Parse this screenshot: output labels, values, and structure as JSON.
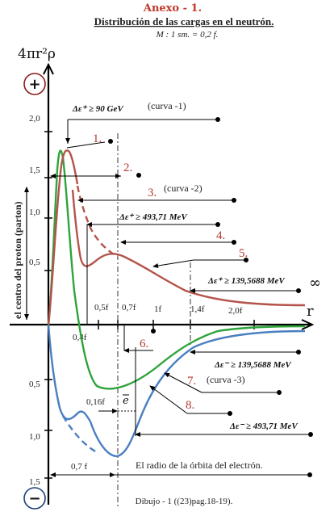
{
  "header": {
    "title": "Anexo - 1.",
    "subtitle": "Distribución de las cargas en el neutrón.",
    "scale": "M : 1 sm. = 0,2 f."
  },
  "axes": {
    "ylabel": "4πr²ρ",
    "xlabel": "r",
    "y_side_label": "el centro del proton (parton)",
    "y_ticks_pos": [
      "2,0",
      "1,5",
      "1,0",
      "0,5"
    ],
    "y_ticks_neg": [
      "0,5",
      "1,0",
      "1,5"
    ],
    "x_ticks": [
      "0,5f",
      "0,7f",
      "1f",
      "1,4f",
      "2,0f"
    ],
    "x_tick_below": "0,4f",
    "plus_sign": "+",
    "minus_sign": "−",
    "infinity": "∞"
  },
  "annotations": {
    "n1": "1.",
    "n2": "2.",
    "n3": "3.",
    "n4": "4.",
    "n5": "5.",
    "n6": "6.",
    "n7": "7.",
    "n8": "8.",
    "curva1": "(curva -1)",
    "curva2": "(curva -2)",
    "curva3": "(curva -3)",
    "e_plus_90": "Δε⁺ ≥ 90 GeV",
    "e_plus_493": "Δε⁺ ≥ 493,71 MeV",
    "e_plus_139": "Δε⁺ ≥ 139,5688 MeV",
    "e_minus_139": "Δε⁻ ≥ 139,5688 MeV",
    "e_minus_493": "Δε⁻ ≥ 493,71 MeV",
    "f016": "0,16f",
    "e_bar": "e",
    "f07": "0,7 f",
    "orbit_label": "El radio de la órbita del electrón.",
    "caption": "Dibujo - 1 ((23)pag.18-19)."
  },
  "colors": {
    "red_curve": "#b5534b",
    "green_curve": "#2ea43a",
    "blue_curve": "#4a7fc1",
    "axis": "#000000",
    "sign_circle": "#8b1a1a"
  }
}
